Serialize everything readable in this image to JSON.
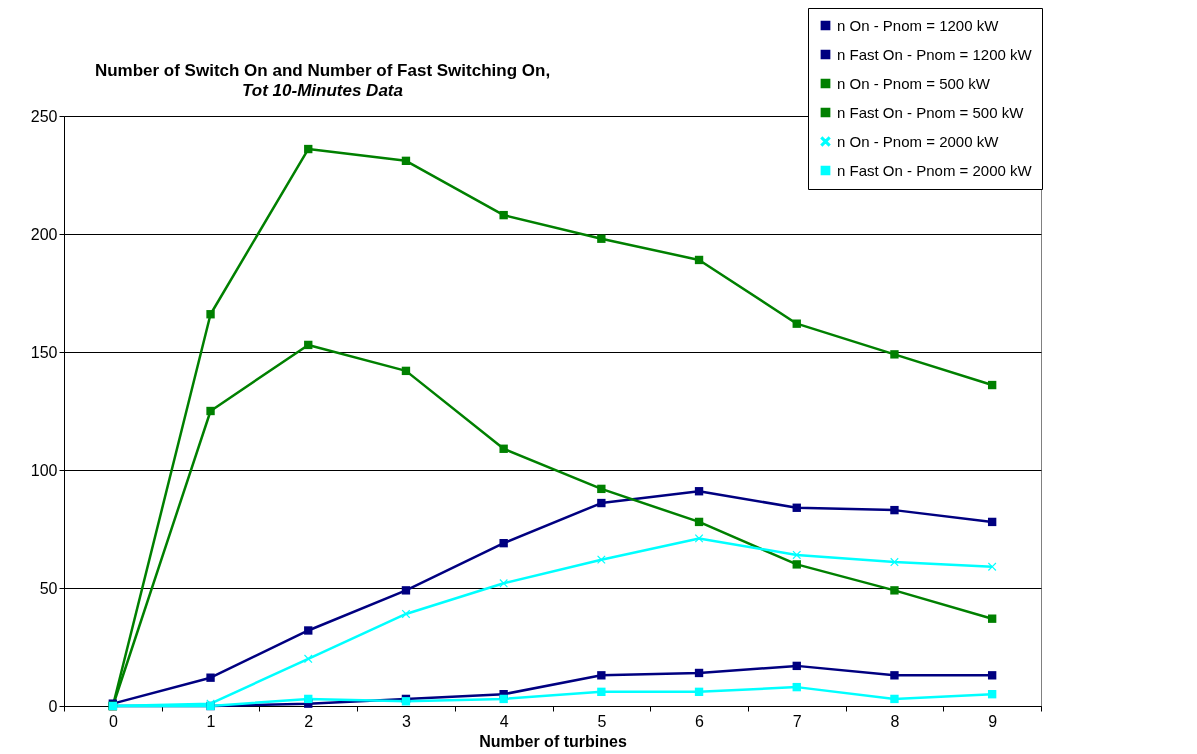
{
  "chart_data": {
    "type": "line",
    "title": "Number of Switch On and Number of Fast Switching On,",
    "subtitle": "Tot 10-Minutes Data",
    "xlabel": "Number of turbines",
    "categories": [
      "0",
      "1",
      "2",
      "3",
      "4",
      "5",
      "6",
      "7",
      "8",
      "9"
    ],
    "series": [
      {
        "name": "n On - Pnom = 1200 kW",
        "color": "#000080",
        "marker": "square",
        "values": [
          1,
          12,
          32,
          49,
          69,
          86,
          91,
          84,
          83,
          78
        ]
      },
      {
        "name": "n Fast On - Pnom = 1200 kW",
        "color": "#000080",
        "marker": "square",
        "values": [
          0,
          0,
          1,
          3,
          5,
          13,
          14,
          17,
          13,
          13
        ]
      },
      {
        "name": "n On - Pnom = 500 kW",
        "color": "#008000",
        "marker": "square",
        "values": [
          0,
          166,
          236,
          231,
          208,
          198,
          189,
          162,
          149,
          136
        ]
      },
      {
        "name": "n Fast On - Pnom = 500 kW",
        "color": "#008000",
        "marker": "square",
        "values": [
          0,
          125,
          153,
          142,
          109,
          92,
          78,
          60,
          49,
          37
        ]
      },
      {
        "name": "n On - Pnom = 2000 kW",
        "color": "#00ffff",
        "marker": "cross",
        "values": [
          0,
          1,
          20,
          39,
          52,
          62,
          71,
          64,
          61,
          59
        ]
      },
      {
        "name": "n Fast On - Pnom = 2000 kW",
        "color": "#00ffff",
        "marker": "square",
        "values": [
          0,
          0,
          3,
          2,
          3,
          6,
          6,
          8,
          3,
          5
        ]
      }
    ],
    "ylim": [
      0,
      250
    ],
    "yticks": [
      0,
      50,
      100,
      150,
      200,
      250
    ],
    "grid": "y",
    "legend": "top right"
  }
}
